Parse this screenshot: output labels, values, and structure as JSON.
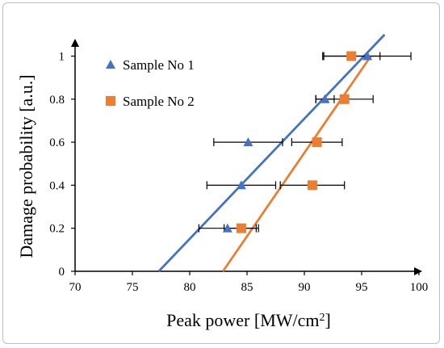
{
  "chart_data": {
    "type": "scatter",
    "xlabel": "Peak power [MW/cm",
    "xlabel_sup": "2",
    "xlabel_end": "]",
    "ylabel": "Damage  probability [a.u.]",
    "xlim": [
      70,
      100
    ],
    "ylim": [
      0,
      1.1
    ],
    "xticks": [
      70,
      75,
      80,
      85,
      90,
      95,
      100
    ],
    "yticks": [
      0,
      0.2,
      0.4,
      0.6,
      0.8,
      1
    ],
    "ytick_labels": [
      "0",
      "0.2",
      "0.4",
      "0.6",
      "0.8",
      "1"
    ],
    "legend_position": "upper-left",
    "grid": false,
    "series": [
      {
        "name": "Sample No 1",
        "marker": "triangle",
        "color": "#4472c4",
        "points": [
          {
            "x": 83.3,
            "y": 0.2,
            "xerr": 2.5
          },
          {
            "x": 84.5,
            "y": 0.4,
            "xerr": 3.0
          },
          {
            "x": 85.1,
            "y": 0.6,
            "xerr": 3.0
          },
          {
            "x": 91.8,
            "y": 0.8,
            "xerr": 0.8
          },
          {
            "x": 95.5,
            "y": 1.0,
            "xerr": 3.8
          }
        ],
        "fit": [
          [
            77.3,
            0
          ],
          [
            97.0,
            1.1
          ]
        ]
      },
      {
        "name": "Sample No 2",
        "marker": "square",
        "color": "#ed7d31",
        "points": [
          {
            "x": 84.5,
            "y": 0.2,
            "xerr": 1.5
          },
          {
            "x": 90.7,
            "y": 0.4,
            "xerr": 2.8
          },
          {
            "x": 91.1,
            "y": 0.6,
            "xerr": 2.2
          },
          {
            "x": 93.5,
            "y": 0.8,
            "xerr": 2.5
          },
          {
            "x": 94.1,
            "y": 1.0,
            "xerr": 2.5
          }
        ],
        "fit": [
          [
            82.9,
            0
          ],
          [
            95.8,
            1.0
          ]
        ]
      }
    ]
  }
}
